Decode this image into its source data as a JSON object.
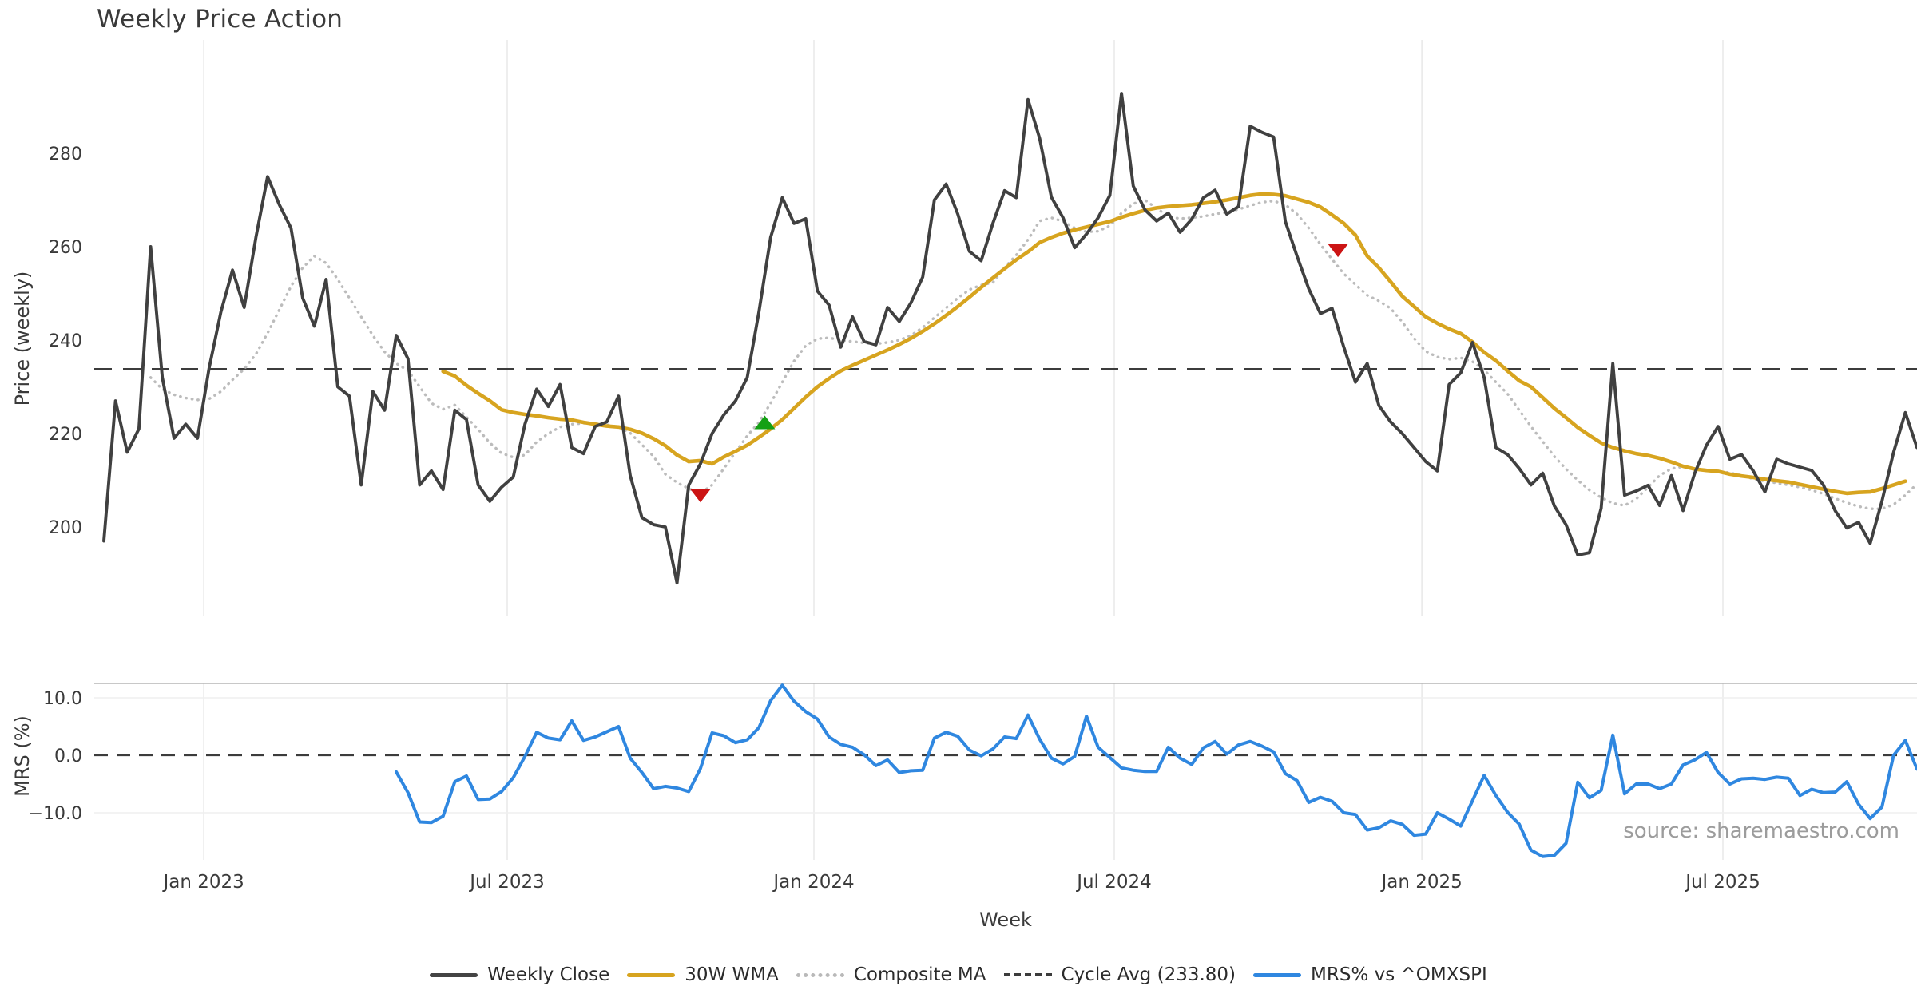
{
  "title": "Weekly Price Action",
  "watermark": {
    "text": "source: sharemaestro.com"
  },
  "legend": {
    "items": [
      {
        "label": "Weekly Close",
        "swatch": "solid-dark"
      },
      {
        "label": "30W WMA",
        "swatch": "solid-gold"
      },
      {
        "label": "Composite MA",
        "swatch": "dotted-gray"
      },
      {
        "label": "Cycle Avg (233.80)",
        "swatch": "dashed-dark"
      },
      {
        "label": "MRS% vs ^OMXSPI",
        "swatch": "solid-blue"
      }
    ]
  },
  "colors": {
    "close": "#404040",
    "wma": "#d7a41f",
    "composite": "#bcbcbc",
    "cycle": "#3c3c3c",
    "mrs": "#2f87e0",
    "sell_marker": "#cc1414",
    "buy_marker": "#14a014",
    "grid": "#e9e9e9",
    "grid_soft": "#efefef",
    "spine": "#b5b5b5",
    "tick_text": "#3a3a3a",
    "label_text": "#3a3a3a"
  },
  "chart_data": {
    "type": "line",
    "title": "Weekly Price Action",
    "xlabel": "Week",
    "cycle_avg": 233.8,
    "x_axis": {
      "n_weeks": 156,
      "tick_labels": [
        "Jan 2023",
        "Jul 2023",
        "Jan 2024",
        "Jul 2024",
        "Jan 2025",
        "Jul 2025"
      ],
      "tick_weeks": [
        8.54,
        34.48,
        60.7,
        86.38,
        112.67,
        138.41
      ]
    },
    "panels": [
      {
        "name": "price",
        "ylabel": "Price (weekly)",
        "yticks": [
          200,
          220,
          240,
          260,
          280
        ],
        "ytick_labels": [
          "200",
          "220",
          "240",
          "260",
          "280"
        ],
        "grid": "vertical-only"
      },
      {
        "name": "mrs",
        "ylabel": "MRS (%)",
        "yticks": [
          -10,
          0,
          10
        ],
        "ytick_labels": [
          "−10.0",
          "0.0",
          "10.0"
        ],
        "grid": "vertical-only",
        "ylim": [
          -18.2,
          12.6
        ]
      }
    ],
    "series": [
      {
        "name": "Weekly Close",
        "panel": "price",
        "style": "solid",
        "start_week": 0,
        "values": [
          197,
          227,
          216,
          221,
          260,
          232,
          219,
          222,
          219,
          234,
          246,
          255,
          247,
          262,
          275,
          269,
          264,
          249,
          243,
          253,
          230,
          228,
          209,
          229,
          225,
          241,
          236,
          209,
          212,
          208,
          225,
          223,
          209,
          205.5,
          208.5,
          210.7,
          222,
          229.5,
          225.8,
          230.5,
          217,
          215.7,
          221.5,
          222.5,
          228,
          211,
          202,
          200.5,
          200,
          188,
          209,
          213.5,
          220,
          224,
          227,
          232,
          246,
          262,
          270.5,
          265,
          266,
          250.5,
          247.5,
          238.5,
          245,
          239.7,
          239,
          247,
          244,
          248,
          253.5,
          270,
          273.4,
          267,
          259,
          257,
          265,
          272,
          270.5,
          291.5,
          283.2,
          270.6,
          266.2,
          259.8,
          262.7,
          266.2,
          271,
          292.8,
          273,
          267.9,
          265.5,
          267.2,
          263.1,
          265.9,
          270.5,
          272.1,
          267,
          268.6,
          285.8,
          284.5,
          283.5,
          265.4,
          258,
          251,
          245.7,
          246.8,
          238.5,
          231,
          235,
          226,
          222.5,
          220,
          217,
          214,
          212,
          230.5,
          233,
          239.5,
          232,
          217,
          215.5,
          212.5,
          209,
          211.5,
          204.5,
          200.5,
          194,
          194.5,
          204,
          235,
          206.8,
          207.7,
          208.9,
          204.6,
          211,
          203.5,
          211.5,
          217.5,
          221.5,
          214.5,
          215.5,
          212,
          207.5,
          214.5,
          213.5,
          212.8,
          212.1,
          209,
          203.5,
          199.8,
          201,
          196.5,
          205.5,
          216,
          224.5,
          217
        ]
      },
      {
        "name": "30W WMA",
        "panel": "price",
        "style": "solid",
        "start_week": 29,
        "values": [
          233.3,
          232.3,
          230.3,
          228.6,
          227,
          225.1,
          224.5,
          224.1,
          223.8,
          223.4,
          223.1,
          222.9,
          222.4,
          222,
          221.6,
          221.4,
          220.9,
          220.1,
          218.9,
          217.4,
          215.4,
          214,
          214.2,
          213.5,
          215,
          216.2,
          217.5,
          219.2,
          221,
          223,
          225.4,
          227.8,
          230,
          231.8,
          233.4,
          234.6,
          235.7,
          236.8,
          237.9,
          239.1,
          240.4,
          241.9,
          243.5,
          245.3,
          247.2,
          249.2,
          251.3,
          253.3,
          255.3,
          257.2,
          258.9,
          260.9,
          262,
          262.9,
          263.6,
          264.2,
          264.8,
          265.4,
          266.3,
          267.1,
          267.8,
          268.3,
          268.6,
          268.8,
          269,
          269.3,
          269.6,
          270,
          270.5,
          271,
          271.3,
          271.2,
          270.9,
          270.2,
          269.5,
          268.5,
          266.8,
          265,
          262.5,
          258,
          255.5,
          252.5,
          249.4,
          247.2,
          245,
          243.6,
          242.4,
          241.4,
          239.6,
          237.4,
          235.6,
          233.4,
          231.3,
          230,
          227.7,
          225.4,
          223.4,
          221.3,
          219.6,
          218,
          217,
          216.3,
          215.7,
          215.3,
          214.7,
          213.9,
          213,
          212.4,
          212.1,
          211.9,
          211.3,
          210.9,
          210.6,
          210.2,
          209.9,
          209.6,
          209.1,
          208.6,
          208.1,
          207.6,
          207.2,
          207.4,
          207.5,
          208.2,
          209,
          209.8
        ]
      },
      {
        "name": "Composite MA",
        "panel": "price",
        "style": "dotted",
        "start_week": 4,
        "values": [
          232,
          229.5,
          228.3,
          227.6,
          227.2,
          227.4,
          229,
          231.5,
          233.8,
          237,
          241.5,
          246.5,
          251.5,
          255.5,
          258,
          256.5,
          253,
          249,
          245,
          241,
          237.5,
          235,
          233.5,
          230,
          226.5,
          225.2,
          226.1,
          223.5,
          220.9,
          218,
          215.8,
          214.9,
          215.4,
          218.2,
          220,
          221.4,
          222,
          222.2,
          222.2,
          221.9,
          221.4,
          220.1,
          217.6,
          215.1,
          211.3,
          209.5,
          208.2,
          207.2,
          209,
          212.5,
          216,
          219.5,
          222.4,
          226.5,
          231,
          235.5,
          238.8,
          240.3,
          240.5,
          240,
          239.7,
          239.4,
          239.2,
          239.5,
          240,
          241,
          242.7,
          244.8,
          246.9,
          249,
          250.8,
          251.8,
          252.3,
          255.5,
          258.2,
          261.5,
          265.5,
          266.2,
          265.4,
          264,
          263.2,
          263.3,
          264.5,
          267.2,
          269.2,
          270,
          268.2,
          266.5,
          266,
          266.2,
          266.5,
          267,
          267.4,
          268,
          268.8,
          269.5,
          269.8,
          269,
          267,
          264,
          260.5,
          257.3,
          254.2,
          251.9,
          249.6,
          248.4,
          246.8,
          243.9,
          240.4,
          237.6,
          236.4,
          235.9,
          236.2,
          235.4,
          233.6,
          231,
          228.5,
          225,
          221.5,
          218.3,
          215.1,
          212.4,
          210,
          207.9,
          206.3,
          205.1,
          204.6,
          206,
          208.5,
          211,
          212.5,
          212.9,
          212.5,
          212.1,
          211.9,
          211.6,
          211,
          210.3,
          209.8,
          209.4,
          209,
          208.5,
          207.9,
          207.1,
          206.1,
          205.2,
          204.4,
          203.9,
          203.9,
          204.8,
          206.8,
          209.2
        ]
      },
      {
        "name": "MRS% vs ^OMXSPI",
        "panel": "mrs",
        "style": "solid",
        "start_week": 25,
        "values": [
          -2.9,
          -6.5,
          -11.6,
          -11.7,
          -10.6,
          -4.6,
          -3.6,
          -7.7,
          -7.6,
          -6.3,
          -3.9,
          -0.2,
          4.0,
          3.0,
          2.7,
          6.0,
          2.6,
          3.2,
          4.1,
          5.0,
          -0.5,
          -3.0,
          -5.8,
          -5.4,
          -5.7,
          -6.3,
          -2.3,
          3.9,
          3.4,
          2.2,
          2.7,
          4.8,
          9.5,
          12.2,
          9.4,
          7.6,
          6.3,
          3.2,
          1.9,
          1.4,
          0.1,
          -1.8,
          -0.8,
          -3.0,
          -2.7,
          -2.6,
          3.0,
          4.0,
          3.3,
          0.9,
          -0.1,
          1.1,
          3.2,
          2.9,
          7.0,
          2.8,
          -0.5,
          -1.5,
          -0.2,
          6.8,
          1.4,
          -0.4,
          -2.2,
          -2.6,
          -2.8,
          -2.8,
          1.4,
          -0.5,
          -1.6,
          1.3,
          2.4,
          0.2,
          1.8,
          2.4,
          1.6,
          0.6,
          -3.2,
          -4.4,
          -8.2,
          -7.3,
          -8.0,
          -10.0,
          -10.3,
          -13.0,
          -12.6,
          -11.4,
          -12.0,
          -13.9,
          -13.7,
          -10.0,
          -11.1,
          -12.3,
          -7.9,
          -3.5,
          -7.0,
          -9.9,
          -12.0,
          -16.5,
          -17.6,
          -17.4,
          -15.3,
          -4.7,
          -7.4,
          -6.1,
          3.5,
          -6.7,
          -5.0,
          -5.0,
          -5.8,
          -5.0,
          -1.7,
          -0.8,
          0.5,
          -3.0,
          -5.0,
          -4.1,
          -4.0,
          -4.2,
          -3.8,
          -4.0,
          -7.0,
          -5.9,
          -6.5,
          -6.4,
          -4.6,
          -8.5,
          -11.0,
          -9.0,
          0.0,
          2.6,
          -2.4
        ]
      }
    ],
    "markers": [
      {
        "type": "sell",
        "week": 51,
        "value": 206.7,
        "panel": "price"
      },
      {
        "type": "buy",
        "week": 56.5,
        "value": 222.4,
        "panel": "price"
      },
      {
        "type": "sell",
        "week": 105.5,
        "value": 259.2,
        "panel": "price"
      }
    ]
  }
}
